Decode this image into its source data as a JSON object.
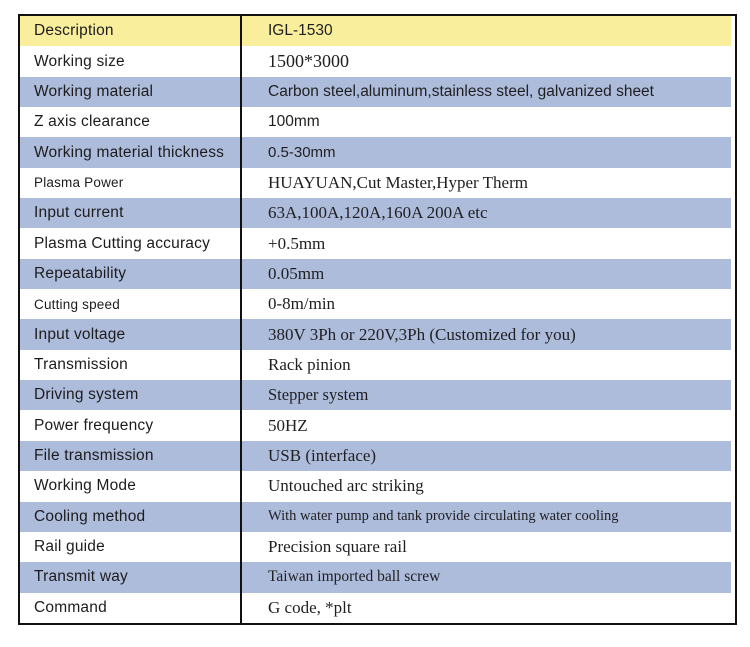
{
  "colors": {
    "page_bg": "#ffffff",
    "header_bg": "#f8ee9c",
    "stripe_bg": "#aebcdb",
    "border": "#111111",
    "label_text": "#1c1c1e",
    "value_text": "#1f1f22"
  },
  "table": {
    "header": {
      "label": "Description",
      "value": "IGL-1530",
      "band": "yellow",
      "value_style": "sans",
      "value_size": 15.5
    },
    "rows": [
      {
        "label": "Working size",
        "value": "1500*3000",
        "band": "white",
        "value_style": "serif",
        "value_size": 18
      },
      {
        "label": "Working material",
        "value": "Carbon steel,aluminum,stainless steel, galvanized sheet",
        "band": "blue",
        "value_style": "sans",
        "value_size": 15.5
      },
      {
        "label": "Z axis clearance",
        "value": "100mm",
        "band": "white",
        "value_style": "sans",
        "value_size": 15.5
      },
      {
        "label": "Working material thickness",
        "value": "0.5-30mm",
        "band": "blue",
        "value_style": "sans",
        "value_size": 15
      },
      {
        "label": "Plasma Power",
        "value": "HUAYUAN,Cut Master,Hyper Therm",
        "band": "white",
        "value_style": "serif",
        "value_size": 17,
        "label_size": 13.5
      },
      {
        "label": "Input current",
        "value": "63A,100A,120A,160A 200A etc",
        "band": "blue",
        "value_style": "serif",
        "value_size": 17
      },
      {
        "label": "Plasma Cutting accuracy",
        "value": "+0.5mm",
        "band": "white",
        "value_style": "serif",
        "value_size": 17
      },
      {
        "label": "Repeatability",
        "value": "0.05mm",
        "band": "blue",
        "value_style": "serif",
        "value_size": 17
      },
      {
        "label": "Cutting speed",
        "value": "0-8m/min",
        "band": "white",
        "value_style": "serif",
        "value_size": 17,
        "label_size": 13.5
      },
      {
        "label": "Input voltage",
        "value": "380V 3Ph or 220V,3Ph (Customized for you)",
        "band": "blue",
        "value_style": "serif",
        "value_size": 17
      },
      {
        "label": "Transmission",
        "value": "Rack pinion",
        "band": "white",
        "value_style": "serif",
        "value_size": 17
      },
      {
        "label": "Driving system",
        "value": "Stepper system",
        "band": "blue",
        "value_style": "serif",
        "value_size": 16.5
      },
      {
        "label": "Power frequency",
        "value": "50HZ",
        "band": "white",
        "value_style": "serif",
        "value_size": 17
      },
      {
        "label": "File transmission",
        "value": "USB (interface)",
        "band": "blue",
        "value_style": "serif",
        "value_size": 17
      },
      {
        "label": "Working Mode",
        "value": "Untouched arc striking",
        "band": "white",
        "value_style": "serif",
        "value_size": 17
      },
      {
        "label": "Cooling method",
        "value": "With water pump and tank provide circulating water cooling",
        "band": "blue",
        "value_style": "serif",
        "value_size": 14.5
      },
      {
        "label": "Rail guide",
        "value": "Precision square rail",
        "band": "white",
        "value_style": "serif",
        "value_size": 17
      },
      {
        "label": "Transmit way",
        "value": "Taiwan imported ball screw",
        "band": "blue",
        "value_style": "serif",
        "value_size": 15.5
      },
      {
        "label": "Command",
        "value": "G code, *plt",
        "band": "white",
        "value_style": "serif",
        "value_size": 17
      }
    ]
  }
}
